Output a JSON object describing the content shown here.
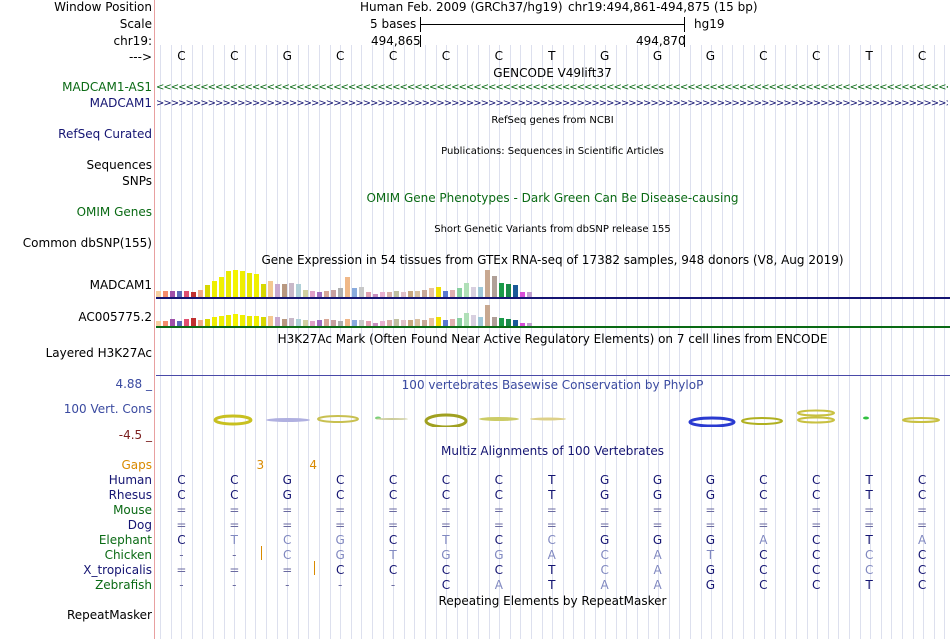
{
  "header": {
    "window_position_label": "Window Position",
    "scale_label": "Scale",
    "chr_label": "chr19:",
    "arrow_label": "--->",
    "assembly_text": "Human Feb. 2009 (GRCh37/hg19)",
    "position_text": "chr19:494,861-494,875 (15 bp)",
    "scale_text": "5 bases",
    "db_text": "hg19",
    "coord_left": "494,865",
    "coord_right": "494,870"
  },
  "bases": [
    "C",
    "C",
    "G",
    "C",
    "C",
    "C",
    "C",
    "T",
    "G",
    "G",
    "G",
    "C",
    "C",
    "T",
    "C"
  ],
  "gencode": {
    "title": "GENCODE V49lift37",
    "tracks": [
      {
        "name": "MADCAM1-AS1",
        "strand_glyph": "<",
        "color": "#0a6a14"
      },
      {
        "name": "MADCAM1",
        "strand_glyph": ">",
        "color": "#141472"
      }
    ]
  },
  "refseq": {
    "label": "RefSeq Curated",
    "title": "RefSeq genes from NCBI"
  },
  "publications": {
    "label_a": "Sequences",
    "label_b": "SNPs",
    "title": "Publications: Sequences in Scientific Articles"
  },
  "omim": {
    "label": "OMIM Genes",
    "title": "OMIM Gene Phenotypes - Dark Green Can Be Disease-causing"
  },
  "dbsnp": {
    "label": "Common dbSNP(155)",
    "title": "Short Genetic Variants from dbSNP release 155"
  },
  "gtex": {
    "title": "Gene Expression in 54 tissues from GTEx RNA-seq of 17382 samples, 948 donors (V8, Aug 2019)",
    "genes": [
      {
        "name": "MADCAM1",
        "values": [
          0.25,
          0.25,
          0.25,
          0.25,
          0.25,
          0.2,
          0.3,
          0.45,
          0.6,
          0.75,
          0.95,
          1.0,
          0.95,
          0.9,
          0.85,
          0.5,
          0.6,
          0.5,
          0.5,
          0.55,
          0.5,
          0.3,
          0.25,
          0.2,
          0.25,
          0.3,
          0.35,
          0.75,
          0.35,
          0.4,
          0.2,
          0.15,
          0.2,
          0.2,
          0.25,
          0.2,
          0.25,
          0.25,
          0.3,
          0.35,
          0.4,
          0.25,
          0.3,
          0.35,
          0.55,
          0.4,
          0.4,
          1.0,
          0.8,
          0.55,
          0.5,
          0.45,
          0.2,
          0.2
        ]
      },
      {
        "name": "AC005775.2",
        "values": [
          0.25,
          0.25,
          0.35,
          0.25,
          0.35,
          0.4,
          0.3,
          0.35,
          0.45,
          0.5,
          0.55,
          0.6,
          0.55,
          0.5,
          0.5,
          0.45,
          0.5,
          0.45,
          0.35,
          0.4,
          0.35,
          0.3,
          0.25,
          0.3,
          0.35,
          0.3,
          0.25,
          0.35,
          0.3,
          0.3,
          0.25,
          0.2,
          0.25,
          0.3,
          0.35,
          0.3,
          0.3,
          0.35,
          0.3,
          0.4,
          0.45,
          0.3,
          0.35,
          0.4,
          0.65,
          0.55,
          0.45,
          1.0,
          0.45,
          0.4,
          0.35,
          0.3,
          0.2,
          0.2
        ]
      }
    ],
    "colors": [
      "#f6d0a0",
      "#f48c6c",
      "#a050a8",
      "#5a6ab8",
      "#e05070",
      "#c03030",
      "#f0a888",
      "#d8d800",
      "#eeee00",
      "#f0f000",
      "#eaea00",
      "#f4f400",
      "#eeee00",
      "#e8e800",
      "#f0f000",
      "#d8d800",
      "#f4c890",
      "#c8a8d0",
      "#b89880",
      "#c8b8c8",
      "#b0d0d8",
      "#d0d0a0",
      "#e0a0c8",
      "#a070c0",
      "#d8a898",
      "#c8a0a0",
      "#b0b0b0",
      "#f0b888",
      "#88aadd",
      "#c8c8c8",
      "#e0a0b0",
      "#c890c0",
      "#e8b0d0",
      "#d8b0a8",
      "#c0c0a0",
      "#e0c0c8",
      "#c8a880",
      "#d8c0a0",
      "#c8a898",
      "#e8c0a0",
      "#f0e000",
      "#5a78d0",
      "#e0b0b0",
      "#88d0a0",
      "#b0e0b8",
      "#d8d0e0",
      "#a0c8d8",
      "#c8a890",
      "#b0a098",
      "#1a9a48",
      "#1a8a48",
      "#1a5a98",
      "#d850d8",
      "#c0a0d0"
    ]
  },
  "h3k27ac": {
    "label": "Layered H3K27Ac",
    "title": "H3K27Ac Mark (Often Found Near Active Regulatory Elements) on 7 cell lines from ENCODE"
  },
  "phylop": {
    "label": "100 Vert. Cons",
    "max": "4.88 _",
    "min": "-4.5 _",
    "title": "100 vertebrates Basewise Conservation by PhyloP"
  },
  "multiz": {
    "title": "Multiz Alignments of 100 Vertebrates",
    "gaps_label": "Gaps",
    "gap_marks": [
      {
        "col": 1.5,
        "text": "3"
      },
      {
        "col": 2.5,
        "text": "4"
      }
    ],
    "species": [
      {
        "name": "Human",
        "color": "#141472",
        "row": [
          "C",
          "C",
          "G",
          "C",
          "C",
          "C",
          "C",
          "T",
          "G",
          "G",
          "G",
          "C",
          "C",
          "T",
          "C"
        ]
      },
      {
        "name": "Rhesus",
        "color": "#141472",
        "row": [
          "C",
          "C",
          "G",
          "C",
          "C",
          "C",
          "C",
          "T",
          "G",
          "G",
          "G",
          "C",
          "C",
          "T",
          "C"
        ]
      },
      {
        "name": "Mouse",
        "color": "#0a6a14",
        "row": [
          "=",
          "=",
          "=",
          "=",
          "=",
          "=",
          "=",
          "=",
          "=",
          "=",
          "=",
          "=",
          "=",
          "=",
          "="
        ]
      },
      {
        "name": "Dog",
        "color": "#141472",
        "row": [
          "=",
          "=",
          "=",
          "=",
          "=",
          "=",
          "=",
          "=",
          "=",
          "=",
          "=",
          "=",
          "=",
          "=",
          "="
        ]
      },
      {
        "name": "Elephant",
        "color": "#0a6a14",
        "row": [
          "C",
          "T",
          "C",
          "G",
          "C",
          "T",
          "C",
          "C",
          "G",
          "G",
          "G",
          "A",
          "C",
          "T",
          "A"
        ]
      },
      {
        "name": "Chicken",
        "color": "#0a6a14",
        "row": [
          "-",
          "-",
          "C",
          "G",
          "T",
          "G",
          "G",
          "A",
          "C",
          "A",
          "T",
          "C",
          "C",
          "C",
          "C"
        ]
      },
      {
        "name": "X_tropicalis",
        "color": "#141472",
        "row": [
          "=",
          "=",
          "=",
          "C",
          "C",
          "C",
          "C",
          "T",
          "C",
          "A",
          "G",
          "C",
          "C",
          "C",
          "C"
        ]
      },
      {
        "name": "Zebrafish",
        "color": "#0a6a14",
        "row": [
          "-",
          "-",
          "-",
          "-",
          "-",
          "C",
          "A",
          "T",
          "A",
          "A",
          "G",
          "C",
          "C",
          "T",
          "C"
        ]
      }
    ]
  },
  "repeatmasker": {
    "label": "RepeatMasker",
    "title": "Repeating Elements by RepeatMasker"
  }
}
